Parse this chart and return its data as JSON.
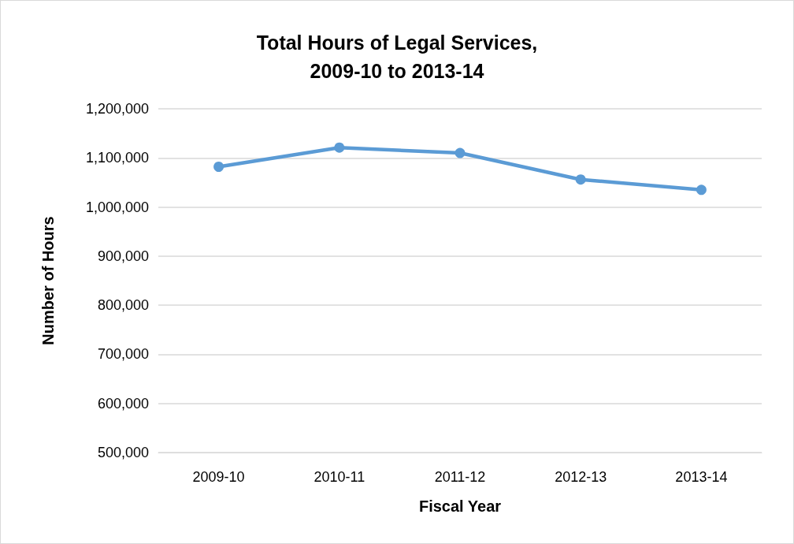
{
  "chart_data": {
    "type": "line",
    "title": "Total Hours of Legal Services,\n2009-10 to 2013-14",
    "xlabel": "Fiscal Year",
    "ylabel": "Number of Hours",
    "categories": [
      "2009-10",
      "2010-11",
      "2011-12",
      "2012-13",
      "2013-14"
    ],
    "series": [
      {
        "color": "#5b9bd5",
        "values": [
          1082000,
          1121000,
          1110000,
          1056000,
          1035000
        ]
      }
    ],
    "ylim": [
      500000,
      1200000
    ],
    "yticks": [
      {
        "value": 500000,
        "label": "500,000"
      },
      {
        "value": 600000,
        "label": "600,000"
      },
      {
        "value": 700000,
        "label": "700,000"
      },
      {
        "value": 800000,
        "label": "800,000"
      },
      {
        "value": 900000,
        "label": "900,000"
      },
      {
        "value": 1000000,
        "label": "1,000,000"
      },
      {
        "value": 1100000,
        "label": "1,100,000"
      },
      {
        "value": 1200000,
        "label": "1,200,000"
      }
    ],
    "grid": "y",
    "marker": "circle",
    "line_style": "solid"
  }
}
